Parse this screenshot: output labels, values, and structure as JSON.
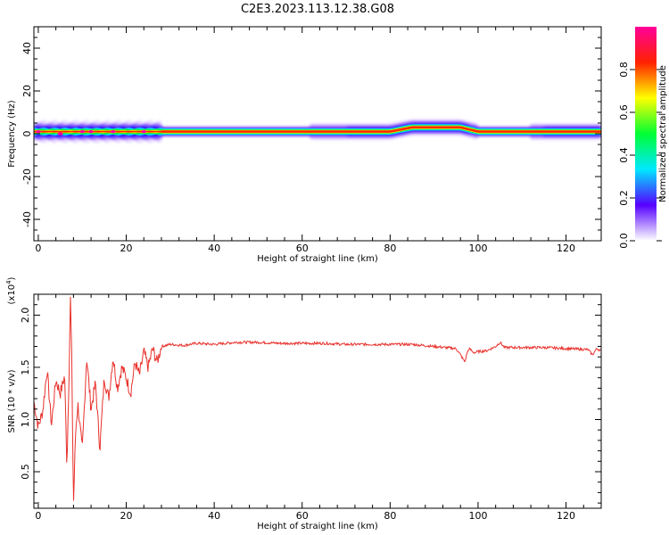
{
  "title": "C2E3.2023.113.12.38.G08",
  "chart_data": [
    {
      "type": "heatmap",
      "xlabel": "Height of straight line (km)",
      "ylabel": "Frequency (Hz)",
      "xlim": [
        -1,
        128
      ],
      "ylim": [
        -50,
        50
      ],
      "xticks": [
        0,
        20,
        40,
        60,
        80,
        100,
        120
      ],
      "yticks": [
        -40,
        -20,
        0,
        20,
        40
      ],
      "colorbar": {
        "label": "Normalized spectral amplitude",
        "range": [
          0,
          1
        ],
        "ticks": [
          "0.0",
          "0.2",
          "0.4",
          "0.6",
          "0.8"
        ],
        "colormap": [
          "#ffffff",
          "#5500ff",
          "#00e8ff",
          "#00ff33",
          "#ffff00",
          "#ff2200",
          "#ff0099"
        ]
      },
      "ridge_frequency_hz": {
        "x": [
          0,
          20,
          40,
          60,
          80,
          85,
          96,
          100,
          128
        ],
        "y": [
          1,
          1,
          1,
          1,
          1,
          3,
          3,
          1,
          1
        ]
      }
    },
    {
      "type": "line",
      "xlabel": "Height of straight line (km)",
      "ylabel": "SNR (10 * v/v)",
      "ylabel_multiplier": "(x10",
      "ylabel_multiplier_exp": "4",
      "ylabel_multiplier_close": ")",
      "xlim": [
        -1,
        128
      ],
      "ylim": [
        0.15,
        2.2
      ],
      "xticks": [
        0,
        20,
        40,
        60,
        80,
        100,
        120
      ],
      "ytick_labels": [
        "0.5",
        "1.0",
        "1.5",
        "2.0"
      ],
      "color": "#e8312c",
      "series": [
        {
          "x": [
            -1,
            0,
            1,
            2,
            3,
            4,
            5,
            6,
            6.5,
            7,
            7.3,
            7.6,
            8,
            8.5,
            9,
            10,
            11,
            12,
            13,
            14,
            15,
            16,
            17,
            18,
            19,
            20,
            21,
            22,
            23,
            24,
            25,
            26,
            27,
            28,
            30,
            33,
            36,
            40,
            45,
            50,
            55,
            60,
            65,
            70,
            75,
            80,
            85,
            90,
            95,
            96,
            97,
            97.5,
            98,
            99,
            100,
            102,
            104,
            105,
            106,
            108,
            110,
            115,
            120,
            125,
            126,
            127,
            128
          ],
          "y": [
            1.17,
            0.93,
            1.08,
            1.48,
            0.95,
            1.38,
            1.25,
            1.42,
            0.55,
            1.45,
            2.18,
            1.6,
            0.18,
            0.9,
            1.15,
            0.7,
            1.6,
            1.1,
            1.35,
            0.72,
            1.4,
            1.2,
            1.6,
            1.3,
            1.5,
            1.4,
            1.25,
            1.55,
            1.42,
            1.65,
            1.5,
            1.68,
            1.55,
            1.7,
            1.72,
            1.71,
            1.73,
            1.72,
            1.74,
            1.74,
            1.73,
            1.73,
            1.73,
            1.72,
            1.72,
            1.72,
            1.72,
            1.7,
            1.68,
            1.62,
            1.55,
            1.64,
            1.68,
            1.64,
            1.65,
            1.66,
            1.7,
            1.74,
            1.69,
            1.69,
            1.69,
            1.69,
            1.68,
            1.67,
            1.62,
            1.68,
            1.66
          ]
        }
      ]
    }
  ]
}
